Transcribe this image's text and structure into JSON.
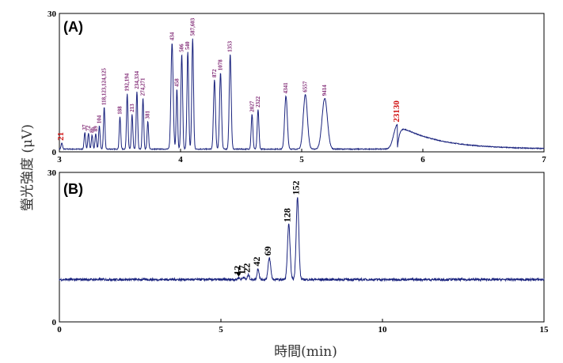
{
  "chart_data": [
    {
      "panel": "(A)",
      "type": "line",
      "xlim": [
        3,
        7
      ],
      "ylim": [
        0,
        30
      ],
      "x_ticks": [
        "3",
        "4",
        "5",
        "6",
        "7"
      ],
      "y_ticks": [
        "0",
        "30"
      ],
      "baseline": 0.6,
      "color": "#1a237e",
      "peaks": [
        {
          "x": 3.02,
          "h": 1.3,
          "w": 0.006,
          "label": "21",
          "red": true
        },
        {
          "x": 3.21,
          "h": 3.6,
          "w": 0.006,
          "label": "37"
        },
        {
          "x": 3.24,
          "h": 3.4,
          "w": 0.006,
          "label": "72"
        },
        {
          "x": 3.27,
          "h": 3.0,
          "w": 0.006,
          "label": "86"
        },
        {
          "x": 3.3,
          "h": 3.3,
          "w": 0.006,
          "label": "89"
        },
        {
          "x": 3.33,
          "h": 5.0,
          "w": 0.006,
          "label": "104"
        },
        {
          "x": 3.37,
          "h": 9.0,
          "w": 0.006,
          "label": "118,123,124,125"
        },
        {
          "x": 3.5,
          "h": 7.0,
          "w": 0.006,
          "label": "188"
        },
        {
          "x": 3.56,
          "h": 12.0,
          "w": 0.006,
          "label": "192,194"
        },
        {
          "x": 3.6,
          "h": 7.5,
          "w": 0.006,
          "label": "213"
        },
        {
          "x": 3.64,
          "h": 12.5,
          "w": 0.006,
          "label": "234,334"
        },
        {
          "x": 3.69,
          "h": 11.0,
          "w": 0.006,
          "label": "274,271"
        },
        {
          "x": 3.73,
          "h": 6.0,
          "w": 0.006,
          "label": "381"
        },
        {
          "x": 3.93,
          "h": 23.0,
          "w": 0.009,
          "label": "434"
        },
        {
          "x": 3.97,
          "h": 13.0,
          "w": 0.006,
          "label": "458"
        },
        {
          "x": 4.01,
          "h": 20.5,
          "w": 0.007,
          "label": "506"
        },
        {
          "x": 4.06,
          "h": 21.0,
          "w": 0.007,
          "label": "540"
        },
        {
          "x": 4.1,
          "h": 24.0,
          "w": 0.007,
          "label": "587,603"
        },
        {
          "x": 4.28,
          "h": 15.0,
          "w": 0.008,
          "label": "872"
        },
        {
          "x": 4.33,
          "h": 16.5,
          "w": 0.008,
          "label": "1078"
        },
        {
          "x": 4.41,
          "h": 20.5,
          "w": 0.008,
          "label": "1353"
        },
        {
          "x": 4.59,
          "h": 7.5,
          "w": 0.007,
          "label": "2027"
        },
        {
          "x": 4.64,
          "h": 8.5,
          "w": 0.007,
          "label": "2322"
        },
        {
          "x": 4.87,
          "h": 11.5,
          "w": 0.011,
          "label": "4341"
        },
        {
          "x": 5.03,
          "h": 11.8,
          "w": 0.017,
          "label": "6557"
        },
        {
          "x": 5.19,
          "h": 11.0,
          "w": 0.022,
          "label": "9414"
        },
        {
          "x": 5.79,
          "h": 5.3,
          "w": 0.03,
          "label": "23130",
          "red": true,
          "tail": 0.33
        }
      ]
    },
    {
      "panel": "(B)",
      "type": "line",
      "xlim": [
        0,
        15
      ],
      "ylim": [
        0,
        30
      ],
      "x_ticks": [
        "0",
        "5",
        "10",
        "15"
      ],
      "y_ticks": [
        "0",
        "30"
      ],
      "baseline": 8.5,
      "color": "#1a237e",
      "arrow_at": 5.55,
      "peaks": [
        {
          "x": 5.55,
          "h": 0.4,
          "w": 0.03,
          "label": "12"
        },
        {
          "x": 5.7,
          "h": 0.5,
          "w": 0.03,
          "label": "17"
        },
        {
          "x": 5.85,
          "h": 0.9,
          "w": 0.03,
          "label": "22"
        },
        {
          "x": 6.15,
          "h": 2.2,
          "w": 0.03,
          "label": "42"
        },
        {
          "x": 6.5,
          "h": 4.3,
          "w": 0.04,
          "label": "69"
        },
        {
          "x": 7.1,
          "h": 11.0,
          "w": 0.04,
          "label": "128"
        },
        {
          "x": 7.37,
          "h": 16.5,
          "w": 0.04,
          "label": "152"
        }
      ]
    }
  ],
  "ylabel": "螢光強度 (μV)",
  "xlabel": "時間(min)"
}
